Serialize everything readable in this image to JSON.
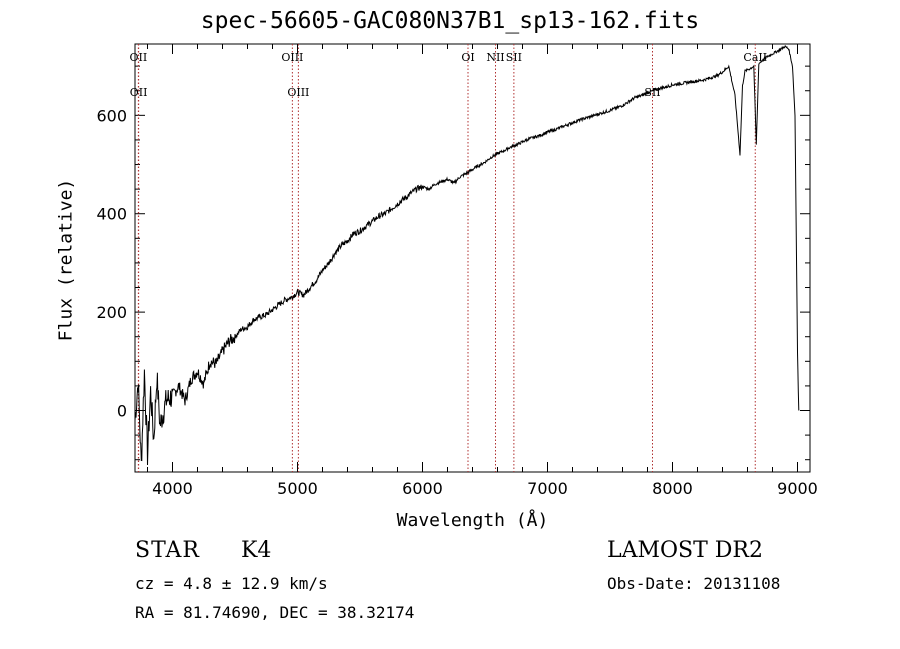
{
  "title": "spec-56605-GAC080N37B1_sp13-162.fits",
  "info": {
    "object_class": "STAR",
    "subclass": "K4",
    "cz": "cz = 4.8 ± 12.9 km/s",
    "radec": "RA =  81.74690, DEC =  38.32174",
    "survey": "LAMOST DR2",
    "obs_date": "Obs-Date: 20131108"
  },
  "colors": {
    "line_marker": "#b03030",
    "spectrum": "#000000"
  },
  "chart_data": {
    "type": "line",
    "title": "spec-56605-GAC080N37B1_sp13-162.fits",
    "xlabel": "Wavelength (Å)",
    "ylabel": "Flux (relative)",
    "xlim": [
      3700,
      9100
    ],
    "ylim": [
      -125,
      745
    ],
    "xticks": [
      4000,
      5000,
      6000,
      7000,
      8000,
      9000
    ],
    "yticks": [
      0,
      200,
      400,
      600
    ],
    "grid": false,
    "series": [
      {
        "x": [
          3700,
          3725,
          3750,
          3775,
          3800,
          3825,
          3850,
          3875,
          3900,
          3950,
          4000,
          4050,
          4100,
          4150,
          4200,
          4250,
          4300,
          4350,
          4400,
          4450,
          4500,
          4550,
          4600,
          4650,
          4700,
          4750,
          4800,
          4850,
          4900,
          4950,
          5000,
          5050,
          5100,
          5150,
          5200,
          5250,
          5300,
          5350,
          5400,
          5450,
          5500,
          5550,
          5600,
          5650,
          5700,
          5750,
          5800,
          5850,
          5900,
          5950,
          6000,
          6050,
          6100,
          6150,
          6200,
          6250,
          6300,
          6350,
          6400,
          6450,
          6500,
          6550,
          6600,
          6650,
          6700,
          6750,
          6800,
          6850,
          6900,
          6950,
          7000,
          7050,
          7100,
          7150,
          7200,
          7250,
          7300,
          7350,
          7400,
          7450,
          7500,
          7550,
          7600,
          7650,
          7700,
          7750,
          7800,
          7850,
          7900,
          7950,
          8000,
          8050,
          8100,
          8150,
          8200,
          8250,
          8300,
          8350,
          8400,
          8450,
          8500,
          8540,
          8560,
          8580,
          8620,
          8650,
          8670,
          8690,
          8720,
          8750,
          8800,
          8850,
          8900,
          8930,
          8960,
          8980,
          9000,
          9010
        ],
        "y": [
          -20,
          60,
          -110,
          80,
          -90,
          40,
          -60,
          70,
          -30,
          20,
          30,
          50,
          20,
          65,
          80,
          55,
          100,
          95,
          120,
          140,
          150,
          165,
          170,
          185,
          190,
          195,
          205,
          215,
          225,
          230,
          240,
          235,
          250,
          265,
          285,
          300,
          320,
          335,
          345,
          360,
          365,
          375,
          385,
          395,
          400,
          410,
          420,
          430,
          440,
          450,
          455,
          450,
          460,
          465,
          470,
          462,
          475,
          482,
          490,
          498,
          505,
          515,
          522,
          528,
          535,
          540,
          546,
          552,
          556,
          560,
          566,
          570,
          575,
          580,
          585,
          590,
          594,
          598,
          602,
          606,
          610,
          615,
          620,
          628,
          636,
          640,
          646,
          650,
          655,
          658,
          662,
          664,
          666,
          668,
          670,
          672,
          676,
          680,
          688,
          700,
          640,
          520,
          660,
          690,
          695,
          700,
          540,
          705,
          712,
          718,
          725,
          732,
          740,
          735,
          700,
          600,
          120,
          0
        ]
      }
    ],
    "lines": [
      {
        "label": "OII",
        "x": 3727,
        "row": 0
      },
      {
        "label": "OII",
        "x": 3729,
        "row": 1
      },
      {
        "label": "OIII",
        "x": 4959,
        "row": 0
      },
      {
        "label": "OIII",
        "x": 5007,
        "row": 1
      },
      {
        "label": "OI",
        "x": 6364,
        "row": 0
      },
      {
        "label": "NII",
        "x": 6584,
        "row": 0
      },
      {
        "label": "SII",
        "x": 6731,
        "row": 0
      },
      {
        "label": "SII",
        "x": 7840,
        "row": 1
      },
      {
        "label": "CaII",
        "x": 8662,
        "row": 0
      }
    ]
  }
}
